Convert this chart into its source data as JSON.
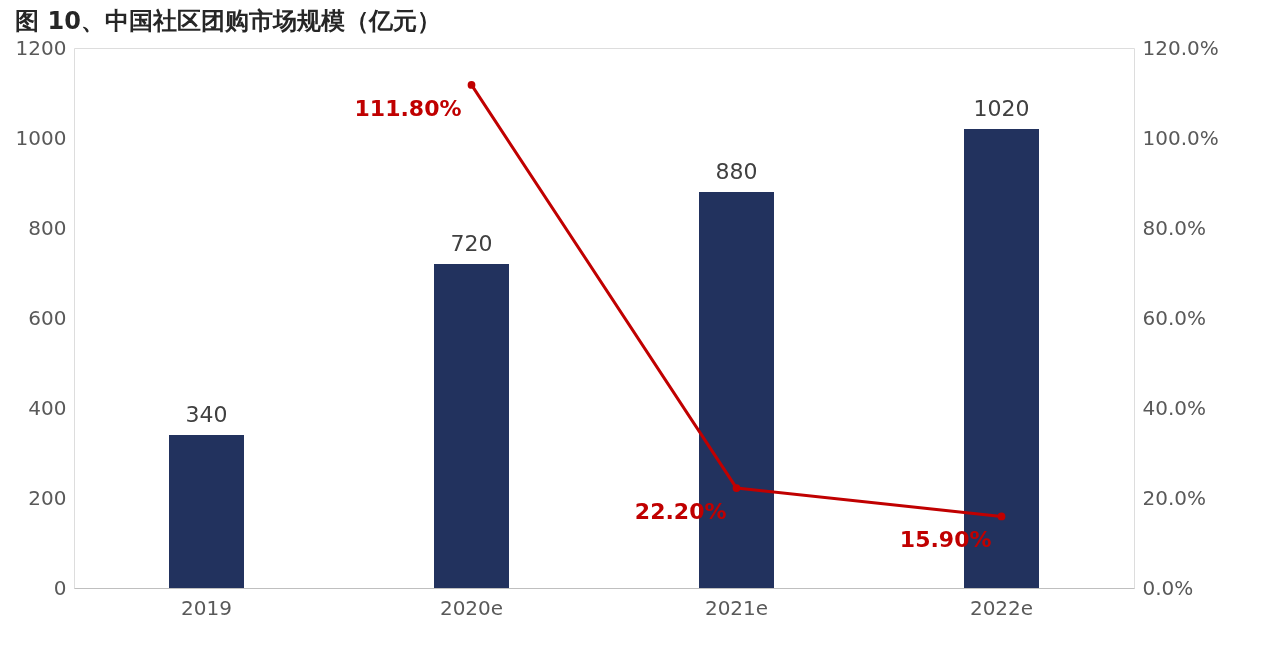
{
  "chart_data": {
    "type": "bar",
    "title": "图 10、中国社区团购市场规模（亿元）",
    "categories": [
      "2019",
      "2020e",
      "2021e",
      "2022e"
    ],
    "series": [
      {
        "color": "#22325e",
        "values": [
          340,
          720,
          880,
          1020
        ]
      },
      {
        "type": "line",
        "axis": "y2",
        "color": "#c00000",
        "marker": "circle",
        "values": [
          null,
          111.8,
          22.2,
          15.9
        ],
        "value_labels": [
          null,
          "111.80%",
          "22.20%",
          "15.90%"
        ]
      }
    ],
    "data_labels": true,
    "ylim": [
      0,
      1200
    ],
    "yticks": [
      0,
      200,
      400,
      600,
      800,
      1000,
      1200
    ],
    "y2lim": [
      0,
      120
    ],
    "y2ticks": [
      {
        "value": 0,
        "label": "0.0%"
      },
      {
        "value": 20,
        "label": "20.0%"
      },
      {
        "value": 40,
        "label": "40.0%"
      },
      {
        "value": 60,
        "label": "60.0%"
      },
      {
        "value": 80,
        "label": "80.0%"
      },
      {
        "value": 100,
        "label": "100.0%"
      },
      {
        "value": 120,
        "label": "120.0%"
      }
    ],
    "grid": false
  }
}
